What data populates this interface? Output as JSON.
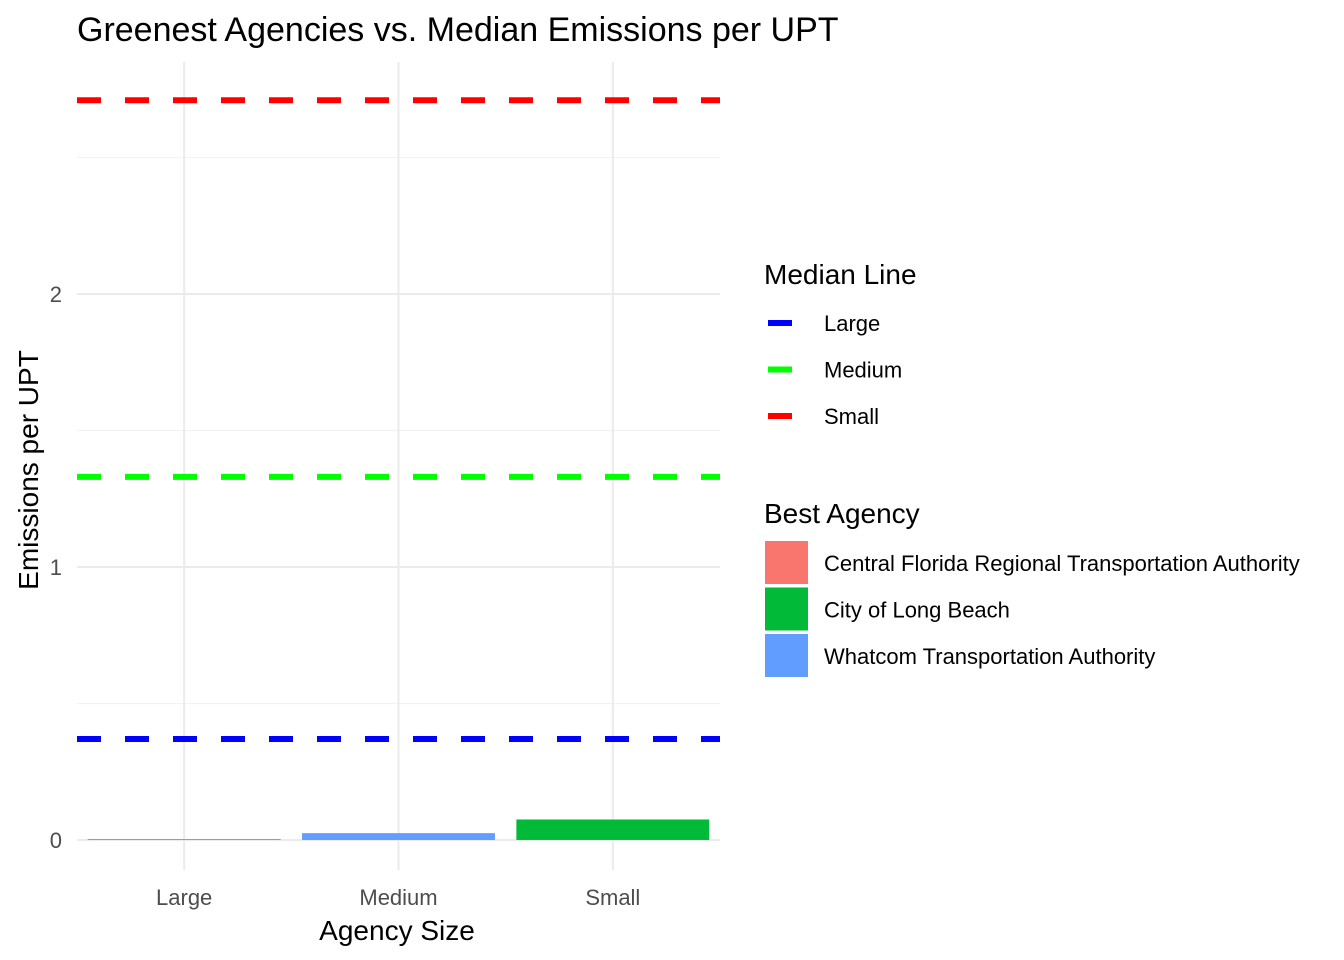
{
  "chart_data": {
    "type": "bar",
    "title": "Greenest Agencies vs. Median Emissions per UPT",
    "xlabel": "Agency Size",
    "ylabel": "Emissions per UPT",
    "categories": [
      "Large",
      "Medium",
      "Small"
    ],
    "ylim": [
      -0.11,
      2.85
    ],
    "yticks": [
      0,
      1,
      2
    ],
    "grid": true,
    "bars": [
      {
        "category": "Large",
        "value": 0.002,
        "agency": "Central Florida Regional Transportation Authority"
      },
      {
        "category": "Medium",
        "value": 0.025,
        "agency": "Whatcom Transportation Authority"
      },
      {
        "category": "Small",
        "value": 0.075,
        "agency": "City of Long Beach"
      }
    ],
    "median_lines": [
      {
        "name": "Large",
        "value": 0.37
      },
      {
        "name": "Medium",
        "value": 1.33
      },
      {
        "name": "Small",
        "value": 2.71
      }
    ],
    "legend_position": "right",
    "legends": {
      "median": {
        "title": "Median Line",
        "items": [
          {
            "label": "Large",
            "color": "#0000ff"
          },
          {
            "label": "Medium",
            "color": "#00ff00"
          },
          {
            "label": "Small",
            "color": "#ff0000"
          }
        ]
      },
      "agency": {
        "title": "Best Agency",
        "items": [
          {
            "label": "Central Florida Regional Transportation Authority",
            "color": "#f8766d"
          },
          {
            "label": "City of Long Beach",
            "color": "#00ba38"
          },
          {
            "label": "Whatcom Transportation Authority",
            "color": "#619cff"
          }
        ]
      }
    }
  }
}
